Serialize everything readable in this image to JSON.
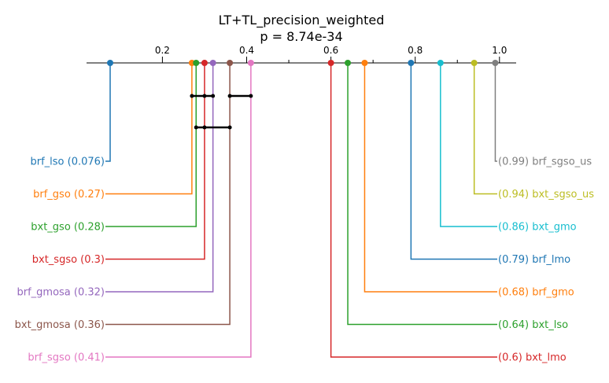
{
  "chart_data": {
    "type": "critical-difference",
    "title": "LT+TL_precision_weighted",
    "subtitle": "p = 8.74e-34",
    "axis": {
      "xlim": [
        0.076,
        1.02
      ],
      "ticks": [
        0.2,
        0.4,
        0.6,
        0.8,
        1.0
      ],
      "tick_labels": [
        "0.2",
        "0.4",
        "0.6",
        "0.8",
        "1.0"
      ],
      "minor_ticks": [
        0.3,
        0.5,
        0.7,
        0.9
      ]
    },
    "methods_left": [
      {
        "name": "brf_lso",
        "value": 0.076,
        "label": "brf_lso (0.076)",
        "color": "#1f77b4"
      },
      {
        "name": "brf_gso",
        "value": 0.27,
        "label": "brf_gso (0.27)",
        "color": "#ff7f0e"
      },
      {
        "name": "bxt_gso",
        "value": 0.28,
        "label": "bxt_gso (0.28)",
        "color": "#2ca02c"
      },
      {
        "name": "bxt_sgso",
        "value": 0.3,
        "label": "bxt_sgso (0.3)",
        "color": "#d62728"
      },
      {
        "name": "brf_gmosa",
        "value": 0.32,
        "label": "brf_gmosa (0.32)",
        "color": "#9467bd"
      },
      {
        "name": "bxt_gmosa",
        "value": 0.36,
        "label": "bxt_gmosa (0.36)",
        "color": "#8c564b"
      },
      {
        "name": "brf_sgso",
        "value": 0.41,
        "label": "brf_sgso (0.41)",
        "color": "#e377c2"
      }
    ],
    "methods_right": [
      {
        "name": "brf_sgso_us",
        "value": 0.99,
        "label": "(0.99) brf_sgso_us",
        "color": "#7f7f7f"
      },
      {
        "name": "bxt_sgso_us",
        "value": 0.94,
        "label": "(0.94) bxt_sgso_us",
        "color": "#bcbd22"
      },
      {
        "name": "bxt_gmo",
        "value": 0.86,
        "label": "(0.86) bxt_gmo",
        "color": "#17becf"
      },
      {
        "name": "brf_lmo",
        "value": 0.79,
        "label": "(0.79) brf_lmo",
        "color": "#1f77b4"
      },
      {
        "name": "brf_gmo",
        "value": 0.68,
        "label": "(0.68) brf_gmo",
        "color": "#ff7f0e"
      },
      {
        "name": "bxt_lso",
        "value": 0.64,
        "label": "(0.64) bxt_lso",
        "color": "#2ca02c"
      },
      {
        "name": "bxt_lmo",
        "value": 0.6,
        "label": "(0.6) bxt_lmo",
        "color": "#d62728"
      }
    ],
    "cliques": [
      {
        "points": [
          0.27,
          0.3,
          0.32
        ]
      },
      {
        "points": [
          0.36,
          0.41
        ]
      },
      {
        "points": [
          0.28,
          0.3,
          0.36
        ]
      }
    ],
    "grid": false,
    "legend": "none"
  }
}
